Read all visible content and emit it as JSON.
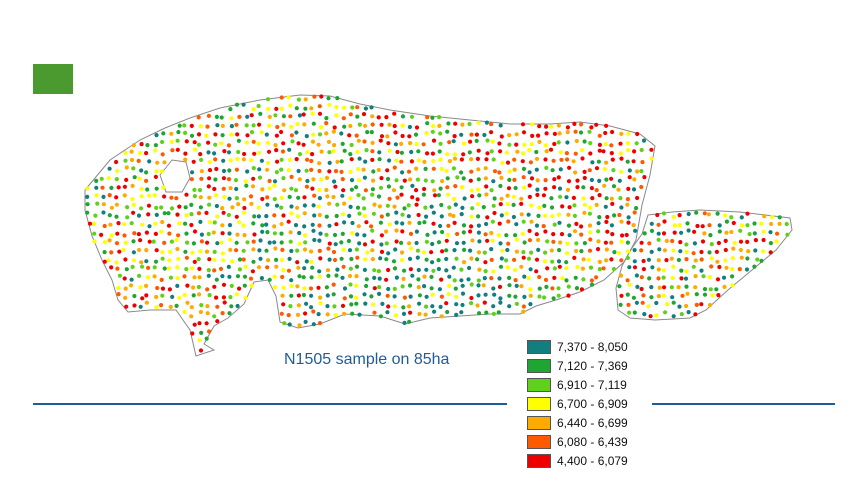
{
  "caption": "N1505 sample on 85ha",
  "colors": {
    "accent_square": "#4a9a2f",
    "rule": "#1f5d99",
    "field_outline": "#8a8a8a",
    "caption_text": "#1f5d99"
  },
  "legend": [
    {
      "label": "7,370 - 8,050",
      "color": "#117f80"
    },
    {
      "label": "7,120 - 7,369",
      "color": "#1ea532"
    },
    {
      "label": "6,910 - 7,119",
      "color": "#5fd11c"
    },
    {
      "label": "6,700 - 6,909",
      "color": "#ffff00"
    },
    {
      "label": "6,440 - 6,699",
      "color": "#ffaa00"
    },
    {
      "label": "6,080 - 6,439",
      "color": "#ff5a00"
    },
    {
      "label": "4,400 - 6,079",
      "color": "#ee0000"
    }
  ]
}
